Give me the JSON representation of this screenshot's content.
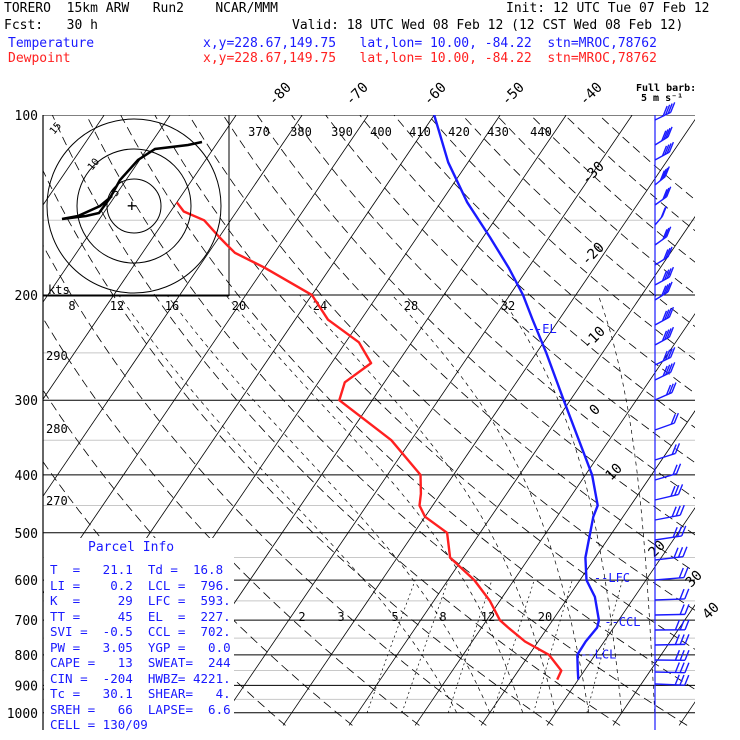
{
  "header": {
    "model": "TORERO  15km ARW   Run2    NCAR/MMM",
    "init": "Init: 12 UTC Tue 07 Feb 12",
    "fcst": "Fcst:   30 h",
    "valid": "Valid: 18 UTC Wed 08 Feb 12 (12 CST Wed 08 Feb 12)",
    "temperature_label": "Temperature",
    "dewpoint_label": "Dewpoint",
    "temperature_loc": "x,y=228.67,149.75   lat,lon= 10.00, -84.22  stn=MROC,78762",
    "dewpoint_loc": "x,y=228.67,149.75   lat,lon= 10.00, -84.22  stn=MROC,78762",
    "full_barb": "Full barb:",
    "full_barb_units": "5 m s⁻¹"
  },
  "colors": {
    "temperature": "#1a1aff",
    "dewpoint": "#ff2020",
    "barbs": "#1a1aff"
  },
  "chart_data": {
    "type": "line",
    "title": "",
    "pressure_axis": [
      100,
      200,
      300,
      400,
      500,
      600,
      700,
      800,
      900,
      1000
    ],
    "isotherm_labels": [
      "-80",
      "-70",
      "-60",
      "-50",
      "-40",
      "-30",
      "-20",
      "-10",
      "0",
      "10",
      "20",
      "30",
      "40"
    ],
    "theta_labels": [
      "370",
      "380",
      "390",
      "400",
      "410",
      "420",
      "430",
      "440"
    ],
    "theta_labels_left": [
      "290",
      "280",
      "270"
    ],
    "wind_labels": [
      "kts",
      "8",
      "12",
      "16",
      "20",
      "24",
      "28",
      "32"
    ],
    "mixing_ratio_labels": [
      "2",
      "3",
      "5",
      "8",
      "12",
      "20"
    ],
    "series": [
      {
        "name": "Temperature",
        "points": [
          [
            880,
            20
          ],
          [
            850,
            19
          ],
          [
            800,
            17.3
          ],
          [
            760,
            17.2
          ],
          [
            720,
            17.5
          ],
          [
            700,
            17
          ],
          [
            640,
            14
          ],
          [
            600,
            11
          ],
          [
            550,
            8.5
          ],
          [
            470,
            5.5
          ],
          [
            450,
            5
          ],
          [
            400,
            1
          ],
          [
            300,
            -11
          ],
          [
            250,
            -18.5
          ],
          [
            220,
            -24
          ],
          [
            200,
            -28
          ],
          [
            180,
            -33
          ],
          [
            160,
            -39
          ],
          [
            140,
            -46
          ],
          [
            120,
            -53
          ],
          [
            100,
            -60
          ]
        ]
      },
      {
        "name": "Dewpoint",
        "points": [
          [
            880,
            16.8
          ],
          [
            850,
            16.5
          ],
          [
            800,
            13
          ],
          [
            760,
            8
          ],
          [
            720,
            4
          ],
          [
            700,
            2
          ],
          [
            650,
            -1.5
          ],
          [
            600,
            -6
          ],
          [
            550,
            -12
          ],
          [
            500,
            -15
          ],
          [
            470,
            -20
          ],
          [
            450,
            -22
          ],
          [
            430,
            -23
          ],
          [
            400,
            -25
          ],
          [
            350,
            -33
          ],
          [
            300,
            -45
          ],
          [
            280,
            -46
          ],
          [
            260,
            -44
          ],
          [
            240,
            -48
          ],
          [
            220,
            -55
          ],
          [
            200,
            -60
          ],
          [
            180,
            -70
          ],
          [
            170,
            -76
          ],
          [
            165,
            -78
          ],
          [
            160,
            -80
          ],
          [
            150,
            -84
          ],
          [
            145,
            -88
          ],
          [
            140,
            -90
          ]
        ]
      }
    ],
    "annotations": [
      "--EL",
      "--LFC",
      "--CCL",
      "--LCL"
    ]
  },
  "hodograph": {
    "ring_labels": [
      "5",
      "10",
      "15"
    ]
  },
  "parcel_info": {
    "title": "Parcel Info",
    "rows": [
      "T  =   21.1  Td =  16.8",
      "LI =    0.2  LCL =  796.",
      "K  =     29  LFC =  593.",
      "TT =     45  EL  =  227.",
      "SVI =  -0.5  CCL =  702.",
      "PW =   3.05  YGP =   0.0",
      "CAPE =   13  SWEAT=  244",
      "CIN =  -204  HWBZ= 4221.",
      "Tc =   30.1  SHEAR=   4.",
      "SREH =   66  LAPSE=  6.6",
      "CELL = 130/09"
    ]
  }
}
